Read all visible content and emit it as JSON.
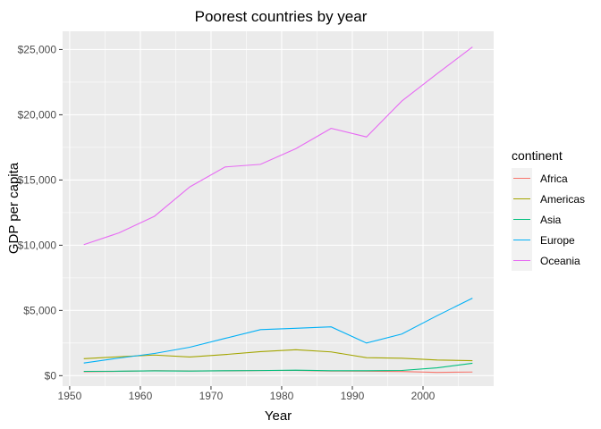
{
  "chart_data": {
    "type": "line",
    "title": "Poorest countries by year",
    "xlabel": "Year",
    "ylabel": "GDP per capita",
    "xlim": [
      1949,
      2010
    ],
    "ylim": [
      -800,
      26400
    ],
    "x_ticks": [
      1950,
      1960,
      1970,
      1980,
      1990,
      2000
    ],
    "x_tick_labels": [
      "1950",
      "1960",
      "1970",
      "1980",
      "1990",
      "2000"
    ],
    "y_ticks": [
      0,
      5000,
      10000,
      15000,
      20000,
      25000
    ],
    "y_tick_labels": [
      "$0",
      "$5,000",
      "$10,000",
      "$15,000",
      "$20,000",
      "$25,000"
    ],
    "grid": true,
    "legend_title": "continent",
    "legend_position": "right",
    "x": [
      1952,
      1957,
      1962,
      1967,
      1972,
      1977,
      1982,
      1987,
      1992,
      1997,
      2002,
      2007
    ],
    "series": [
      {
        "name": "Africa",
        "color": "#F8766D",
        "values": [
          300,
          330,
          380,
          360,
          370,
          390,
          400,
          350,
          340,
          320,
          250,
          280
        ]
      },
      {
        "name": "Americas",
        "color": "#A3A500",
        "values": [
          1300,
          1450,
          1580,
          1430,
          1620,
          1840,
          1990,
          1820,
          1380,
          1340,
          1200,
          1150
        ]
      },
      {
        "name": "Asia",
        "color": "#00BF7D",
        "values": [
          330,
          340,
          370,
          350,
          380,
          390,
          420,
          380,
          380,
          400,
          600,
          950
        ]
      },
      {
        "name": "Europe",
        "color": "#00B0F6",
        "values": [
          970,
          1350,
          1700,
          2180,
          2860,
          3530,
          3630,
          3740,
          2500,
          3190,
          4600,
          5940
        ]
      },
      {
        "name": "Oceania",
        "color": "#E76BF3",
        "values": [
          10040,
          10950,
          12220,
          14470,
          16000,
          16200,
          17400,
          18960,
          18300,
          21050,
          23150,
          25200
        ]
      }
    ]
  }
}
